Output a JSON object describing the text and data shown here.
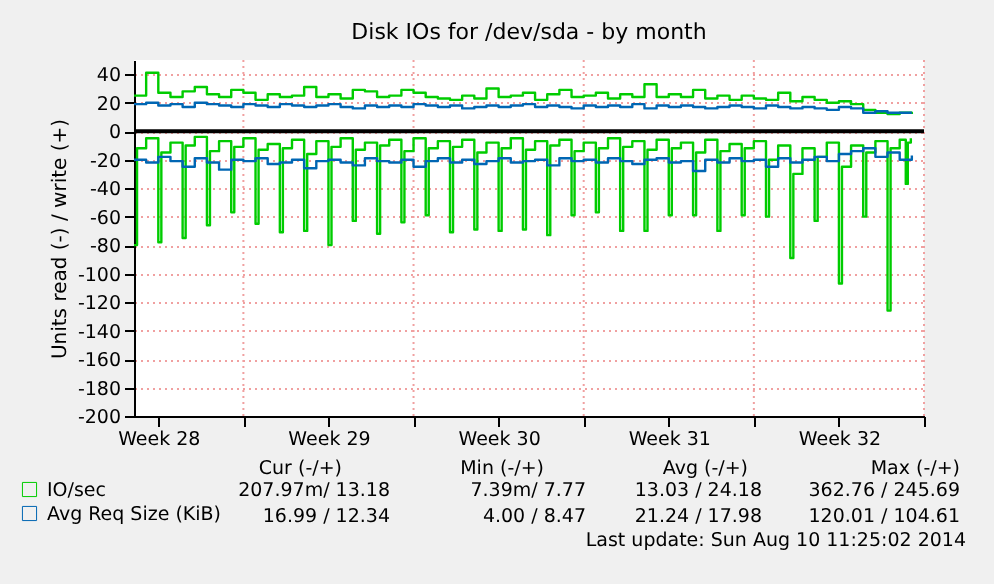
{
  "chart_data": {
    "type": "step",
    "title": "Disk IOs for /dev/sda - by month",
    "ylabel": "Units read (-) / write (+)",
    "xlim": [
      "2014-07-09T12:00",
      "2014-08-11T00:00"
    ],
    "xticks": [
      {
        "value": "2014-07-10T12:00",
        "label": "Week 28"
      },
      {
        "value": "2014-07-14T00:00",
        "label": null
      },
      {
        "value": "2014-07-17T12:00",
        "label": "Week 29"
      },
      {
        "value": "2014-07-21T00:00",
        "label": null
      },
      {
        "value": "2014-07-24T12:00",
        "label": "Week 30"
      },
      {
        "value": "2014-07-28T00:00",
        "label": null
      },
      {
        "value": "2014-07-31T12:00",
        "label": "Week 31"
      },
      {
        "value": "2014-08-04T00:00",
        "label": null
      },
      {
        "value": "2014-08-07T12:00",
        "label": "Week 32"
      },
      {
        "value": "2014-08-11T00:00",
        "label": null
      }
    ],
    "ylim": [
      -200,
      50
    ],
    "yticks": [
      -200,
      -180,
      -160,
      -140,
      -120,
      -100,
      -80,
      -60,
      -40,
      -20,
      0,
      20,
      40
    ],
    "grid": true,
    "legend": "bottom left",
    "ref_lines": [
      {
        "axis": "y",
        "value": 0,
        "color": "#000000"
      }
    ],
    "annotations": [
      "Cur (-/+)",
      "Min (-/+)",
      "Avg (-/+)",
      "Max (-/+)",
      "207.97m/ 13.18",
      "7.39m/ 7.77",
      "13.03 / 24.18",
      "362.76 / 245.69",
      "16.99 / 12.34",
      "4.00 / 8.47",
      "21.24 / 17.98",
      "120.01 / 104.61",
      "Last update: Sun Aug 10 11:25:02 2014"
    ],
    "x": [
      "2014-07-09T12:00",
      "2014-07-10T00:00",
      "2014-07-10T12:00",
      "2014-07-11T00:00",
      "2014-07-11T12:00",
      "2014-07-12T00:00",
      "2014-07-12T12:00",
      "2014-07-13T00:00",
      "2014-07-13T12:00",
      "2014-07-14T00:00",
      "2014-07-14T12:00",
      "2014-07-15T00:00",
      "2014-07-15T12:00",
      "2014-07-16T00:00",
      "2014-07-16T12:00",
      "2014-07-17T00:00",
      "2014-07-17T12:00",
      "2014-07-18T00:00",
      "2014-07-18T12:00",
      "2014-07-19T00:00",
      "2014-07-19T12:00",
      "2014-07-20T00:00",
      "2014-07-20T12:00",
      "2014-07-21T00:00",
      "2014-07-21T12:00",
      "2014-07-22T00:00",
      "2014-07-22T12:00",
      "2014-07-23T00:00",
      "2014-07-23T12:00",
      "2014-07-24T00:00",
      "2014-07-24T12:00",
      "2014-07-25T00:00",
      "2014-07-25T12:00",
      "2014-07-26T00:00",
      "2014-07-26T12:00",
      "2014-07-27T00:00",
      "2014-07-27T12:00",
      "2014-07-28T00:00",
      "2014-07-28T12:00",
      "2014-07-29T00:00",
      "2014-07-29T12:00",
      "2014-07-30T00:00",
      "2014-07-30T12:00",
      "2014-07-31T00:00",
      "2014-07-31T12:00",
      "2014-08-01T00:00",
      "2014-08-01T12:00",
      "2014-08-02T00:00",
      "2014-08-02T12:00",
      "2014-08-03T00:00",
      "2014-08-03T12:00",
      "2014-08-04T00:00",
      "2014-08-04T12:00",
      "2014-08-05T00:00",
      "2014-08-05T12:00",
      "2014-08-06T00:00",
      "2014-08-06T12:00",
      "2014-08-07T00:00",
      "2014-08-07T12:00",
      "2014-08-08T00:00",
      "2014-08-08T12:00",
      "2014-08-09T00:00",
      "2014-08-09T12:00",
      "2014-08-10T00:00",
      "2014-08-10T12:00"
    ],
    "series": [
      {
        "name": "IO/sec",
        "color": "#00cc00",
        "values": [
          25,
          41,
          27,
          24,
          28,
          31,
          26,
          24,
          29,
          27,
          22,
          26,
          24,
          25,
          31,
          24,
          26,
          23,
          29,
          28,
          24,
          25,
          29,
          27,
          24,
          23,
          22,
          25,
          23,
          30,
          24,
          25,
          27,
          22,
          26,
          29,
          24,
          25,
          27,
          23,
          26,
          24,
          33,
          24,
          26,
          24,
          29,
          23,
          25,
          22,
          25,
          23,
          22,
          27,
          21,
          24,
          22,
          20,
          21,
          19,
          15,
          13,
          12,
          13,
          12
        ]
      },
      {
        "color": "#00cc00",
        "x": [
          "2014-07-09T12:00",
          "2014-07-09T15:00",
          "2014-07-10T00:00",
          "2014-07-10T12:00",
          "2014-07-10T15:00",
          "2014-07-11T00:00",
          "2014-07-11T12:00",
          "2014-07-11T15:00",
          "2014-07-12T00:00",
          "2014-07-12T12:00",
          "2014-07-12T15:00",
          "2014-07-13T00:00",
          "2014-07-13T12:00",
          "2014-07-13T15:00",
          "2014-07-14T00:00",
          "2014-07-14T12:00",
          "2014-07-14T15:00",
          "2014-07-15T00:00",
          "2014-07-15T12:00",
          "2014-07-15T15:00",
          "2014-07-16T00:00",
          "2014-07-16T12:00",
          "2014-07-16T15:00",
          "2014-07-17T00:00",
          "2014-07-17T12:00",
          "2014-07-17T15:00",
          "2014-07-18T00:00",
          "2014-07-18T12:00",
          "2014-07-18T15:00",
          "2014-07-19T00:00",
          "2014-07-19T12:00",
          "2014-07-19T15:00",
          "2014-07-20T00:00",
          "2014-07-20T12:00",
          "2014-07-20T15:00",
          "2014-07-21T00:00",
          "2014-07-21T12:00",
          "2014-07-21T15:00",
          "2014-07-22T00:00",
          "2014-07-22T12:00",
          "2014-07-22T15:00",
          "2014-07-23T00:00",
          "2014-07-23T12:00",
          "2014-07-23T15:00",
          "2014-07-24T00:00",
          "2014-07-24T12:00",
          "2014-07-24T15:00",
          "2014-07-25T00:00",
          "2014-07-25T12:00",
          "2014-07-25T15:00",
          "2014-07-26T00:00",
          "2014-07-26T12:00",
          "2014-07-26T15:00",
          "2014-07-27T00:00",
          "2014-07-27T12:00",
          "2014-07-27T15:00",
          "2014-07-28T00:00",
          "2014-07-28T12:00",
          "2014-07-28T15:00",
          "2014-07-29T00:00",
          "2014-07-29T12:00",
          "2014-07-29T15:00",
          "2014-07-30T00:00",
          "2014-07-30T12:00",
          "2014-07-30T15:00",
          "2014-07-31T00:00",
          "2014-07-31T12:00",
          "2014-07-31T15:00",
          "2014-08-01T00:00",
          "2014-08-01T12:00",
          "2014-08-01T15:00",
          "2014-08-02T00:00",
          "2014-08-02T12:00",
          "2014-08-02T15:00",
          "2014-08-03T00:00",
          "2014-08-03T12:00",
          "2014-08-03T15:00",
          "2014-08-04T00:00",
          "2014-08-04T12:00",
          "2014-08-04T15:00",
          "2014-08-05T00:00",
          "2014-08-05T12:00",
          "2014-08-05T15:00",
          "2014-08-06T00:00",
          "2014-08-06T12:00",
          "2014-08-06T15:00",
          "2014-08-07T00:00",
          "2014-08-07T12:00",
          "2014-08-07T15:00",
          "2014-08-08T00:00",
          "2014-08-08T12:00",
          "2014-08-08T15:00",
          "2014-08-09T00:00",
          "2014-08-09T12:00",
          "2014-08-09T15:00",
          "2014-08-10T00:00",
          "2014-08-10T06:00",
          "2014-08-10T08:00",
          "2014-08-10T11:00"
        ],
        "values": [
          -80,
          -12,
          -5,
          -78,
          -15,
          -8,
          -75,
          -10,
          -4,
          -66,
          -14,
          -7,
          -57,
          -11,
          -5,
          -65,
          -13,
          -9,
          -71,
          -12,
          -6,
          -70,
          -16,
          -7,
          -80,
          -11,
          -5,
          -63,
          -13,
          -8,
          -72,
          -10,
          -6,
          -64,
          -14,
          -5,
          -59,
          -12,
          -7,
          -71,
          -11,
          -6,
          -69,
          -15,
          -8,
          -70,
          -12,
          -5,
          -69,
          -13,
          -7,
          -73,
          -10,
          -6,
          -59,
          -14,
          -8,
          -57,
          -12,
          -5,
          -70,
          -11,
          -7,
          -70,
          -13,
          -6,
          -59,
          -12,
          -8,
          -59,
          -15,
          -6,
          -70,
          -14,
          -9,
          -59,
          -12,
          -7,
          -60,
          -20,
          -10,
          -89,
          -30,
          -12,
          -63,
          -18,
          -8,
          -107,
          -25,
          -10,
          -60,
          -15,
          -7,
          -126,
          -12,
          -6,
          -37,
          -8,
          -5
        ]
      },
      {
        "name": "Avg Req Size (KiB)",
        "color": "#0066b3",
        "values": [
          19,
          20,
          18,
          19,
          17,
          20,
          19,
          18,
          17,
          19,
          18,
          17,
          19,
          18,
          17,
          18,
          19,
          17,
          16,
          18,
          17,
          18,
          17,
          19,
          18,
          17,
          18,
          16,
          17,
          18,
          17,
          18,
          19,
          17,
          18,
          17,
          16,
          18,
          17,
          18,
          17,
          19,
          16,
          18,
          17,
          18,
          17,
          16,
          17,
          18,
          17,
          16,
          18,
          17,
          16,
          17,
          16,
          15,
          17,
          16,
          13,
          14,
          13,
          13,
          13
        ]
      },
      {
        "color": "#0066b3",
        "values": [
          -20,
          -22,
          -18,
          -21,
          -25,
          -19,
          -22,
          -27,
          -20,
          -21,
          -19,
          -23,
          -22,
          -20,
          -26,
          -21,
          -20,
          -22,
          -24,
          -19,
          -21,
          -22,
          -20,
          -25,
          -21,
          -19,
          -22,
          -20,
          -23,
          -21,
          -19,
          -22,
          -21,
          -20,
          -24,
          -19,
          -21,
          -20,
          -22,
          -19,
          -21,
          -23,
          -20,
          -19,
          -22,
          -21,
          -28,
          -20,
          -22,
          -19,
          -21,
          -20,
          -25,
          -19,
          -22,
          -20,
          -18,
          -21,
          -16,
          -14,
          -12,
          -18,
          -15,
          -20,
          -17
        ]
      }
    ]
  }
}
